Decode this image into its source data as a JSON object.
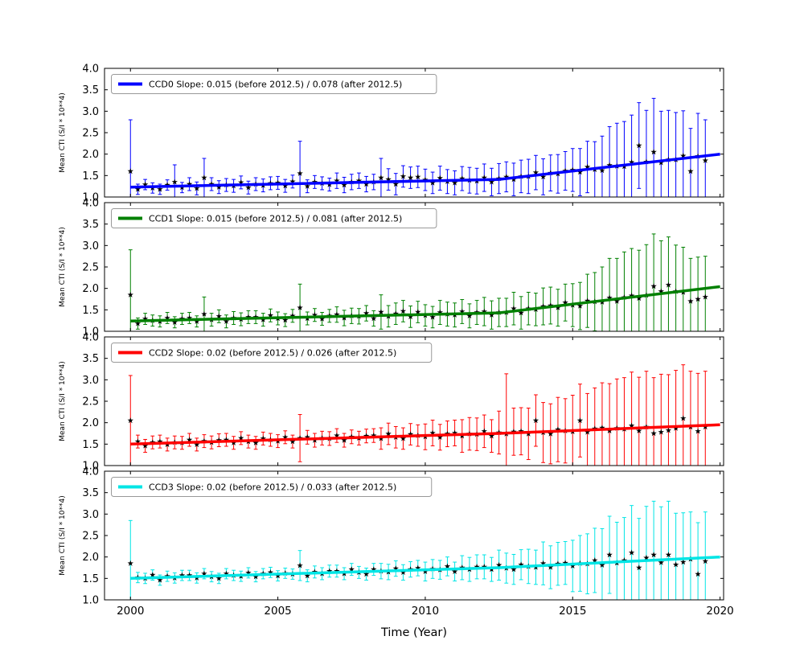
{
  "figure": {
    "background": "#ffffff",
    "xlabel": "Time (Year)",
    "ylabel": "Mean CTI (S/I * 10**4)",
    "x_ticks": [
      2000,
      2005,
      2010,
      2015,
      2020
    ],
    "x_tick_labels": [
      "2000",
      "2005",
      "2010",
      "2015",
      "2020"
    ],
    "y_ticks": [
      4.0,
      3.5,
      3.0,
      2.5,
      2.0,
      1.5,
      1.0
    ],
    "y_tick_labels": [
      "4.0",
      "3.5",
      "3.0",
      "2.5",
      "2.0",
      "1.5",
      "1.0"
    ],
    "xlim": [
      1999.12,
      2020.12
    ],
    "ylim": [
      1.0,
      4.0
    ],
    "marker": "star",
    "marker_color": "#000000",
    "frame_color": "#000000",
    "legend_border_color": "#999999"
  },
  "chart_data": [
    {
      "type": "scatter",
      "name": "CCD0",
      "legend": "CCD0 Slope: 0.015 (before 2012.5) / 0.078 (after 2012.5)",
      "color": "#0000ff",
      "slope_before": 0.015,
      "slope_after": 0.078,
      "break_year": 2012.5,
      "fit_x": [
        2000,
        2012.5,
        2020
      ],
      "fit_y": [
        1.23,
        1.41,
        2.0
      ],
      "x": [
        2000,
        2000.25,
        2000.5,
        2000.75,
        2001,
        2001.25,
        2001.5,
        2001.75,
        2002,
        2002.25,
        2002.5,
        2002.75,
        2003,
        2003.25,
        2003.5,
        2003.75,
        2004,
        2004.25,
        2004.5,
        2004.75,
        2005,
        2005.25,
        2005.5,
        2005.75,
        2006,
        2006.25,
        2006.5,
        2006.75,
        2007,
        2007.25,
        2007.5,
        2007.75,
        2008,
        2008.25,
        2008.5,
        2008.75,
        2009,
        2009.25,
        2009.5,
        2009.75,
        2010,
        2010.25,
        2010.5,
        2010.75,
        2011,
        2011.25,
        2011.5,
        2011.75,
        2012,
        2012.25,
        2012.5,
        2012.75,
        2013,
        2013.25,
        2013.5,
        2013.75,
        2014,
        2014.25,
        2014.5,
        2014.75,
        2015,
        2015.25,
        2015.5,
        2015.75,
        2016,
        2016.25,
        2016.5,
        2016.75,
        2017,
        2017.25,
        2017.5,
        2017.75,
        2018,
        2018.25,
        2018.5,
        2018.75,
        2019,
        2019.25,
        2019.5
      ],
      "y": [
        1.6,
        1.18,
        1.29,
        1.21,
        1.18,
        1.28,
        1.35,
        1.22,
        1.3,
        1.2,
        1.45,
        1.3,
        1.23,
        1.28,
        1.26,
        1.34,
        1.22,
        1.3,
        1.27,
        1.32,
        1.33,
        1.26,
        1.36,
        1.55,
        1.25,
        1.35,
        1.32,
        1.29,
        1.38,
        1.28,
        1.35,
        1.38,
        1.3,
        1.35,
        1.45,
        1.41,
        1.3,
        1.48,
        1.45,
        1.47,
        1.4,
        1.33,
        1.44,
        1.36,
        1.33,
        1.43,
        1.39,
        1.37,
        1.45,
        1.35,
        1.43,
        1.47,
        1.41,
        1.48,
        1.48,
        1.57,
        1.47,
        1.56,
        1.54,
        1.61,
        1.63,
        1.58,
        1.7,
        1.64,
        1.62,
        1.74,
        1.72,
        1.71,
        1.81,
        2.2,
        1.82,
        2.05,
        1.8,
        1.87,
        1.87,
        1.96,
        1.6,
        1.95,
        1.85
      ],
      "err": [
        1.2,
        0.12,
        0.12,
        0.12,
        0.12,
        0.12,
        0.4,
        0.12,
        0.15,
        0.15,
        0.45,
        0.15,
        0.15,
        0.15,
        0.15,
        0.15,
        0.15,
        0.15,
        0.15,
        0.15,
        0.15,
        0.15,
        0.15,
        0.75,
        0.15,
        0.15,
        0.15,
        0.15,
        0.18,
        0.18,
        0.18,
        0.18,
        0.18,
        0.18,
        0.45,
        0.25,
        0.25,
        0.25,
        0.25,
        0.25,
        0.25,
        0.25,
        0.28,
        0.28,
        0.28,
        0.28,
        0.3,
        0.3,
        0.32,
        0.32,
        0.35,
        0.35,
        0.38,
        0.38,
        0.4,
        0.4,
        0.42,
        0.42,
        0.45,
        0.45,
        0.5,
        0.55,
        0.6,
        0.65,
        0.8,
        0.9,
        1.0,
        1.05,
        1.1,
        1.0,
        1.2,
        1.25,
        1.2,
        1.15,
        1.1,
        1.05,
        1.0,
        1.0,
        0.95
      ]
    },
    {
      "type": "scatter",
      "name": "CCD1",
      "legend": "CCD1 Slope: 0.015 (before 2012.5) / 0.081 (after 2012.5)",
      "color": "#008000",
      "slope_before": 0.015,
      "slope_after": 0.081,
      "break_year": 2012.5,
      "fit_x": [
        2000,
        2012.5,
        2020
      ],
      "fit_y": [
        1.24,
        1.43,
        2.04
      ],
      "x": [
        2000,
        2000.25,
        2000.5,
        2000.75,
        2001,
        2001.25,
        2001.5,
        2001.75,
        2002,
        2002.25,
        2002.5,
        2002.75,
        2003,
        2003.25,
        2003.5,
        2003.75,
        2004,
        2004.25,
        2004.5,
        2004.75,
        2005,
        2005.25,
        2005.5,
        2005.75,
        2006,
        2006.25,
        2006.5,
        2006.75,
        2007,
        2007.25,
        2007.5,
        2007.75,
        2008,
        2008.25,
        2008.5,
        2008.75,
        2009,
        2009.25,
        2009.5,
        2009.75,
        2010,
        2010.25,
        2010.5,
        2010.75,
        2011,
        2011.25,
        2011.5,
        2011.75,
        2012,
        2012.25,
        2012.5,
        2012.75,
        2013,
        2013.25,
        2013.5,
        2013.75,
        2014,
        2014.25,
        2014.5,
        2014.75,
        2015,
        2015.25,
        2015.5,
        2015.75,
        2016,
        2016.25,
        2016.5,
        2016.75,
        2017,
        2017.25,
        2017.5,
        2017.75,
        2018,
        2018.25,
        2018.5,
        2018.75,
        2019,
        2019.25,
        2019.5
      ],
      "y": [
        1.85,
        1.18,
        1.29,
        1.25,
        1.23,
        1.31,
        1.21,
        1.29,
        1.31,
        1.23,
        1.4,
        1.27,
        1.35,
        1.23,
        1.31,
        1.28,
        1.33,
        1.33,
        1.27,
        1.37,
        1.3,
        1.26,
        1.36,
        1.55,
        1.3,
        1.38,
        1.29,
        1.36,
        1.39,
        1.31,
        1.36,
        1.35,
        1.42,
        1.3,
        1.45,
        1.35,
        1.41,
        1.47,
        1.34,
        1.45,
        1.37,
        1.33,
        1.44,
        1.4,
        1.38,
        1.46,
        1.36,
        1.44,
        1.46,
        1.38,
        1.44,
        1.44,
        1.53,
        1.43,
        1.53,
        1.51,
        1.58,
        1.6,
        1.55,
        1.67,
        1.61,
        1.59,
        1.71,
        1.69,
        1.68,
        1.78,
        1.7,
        1.79,
        1.83,
        1.77,
        1.84,
        2.05,
        1.93,
        2.08,
        1.93,
        1.91,
        1.7,
        1.75,
        1.8
      ],
      "err": [
        1.05,
        0.13,
        0.13,
        0.13,
        0.13,
        0.13,
        0.13,
        0.13,
        0.13,
        0.13,
        0.4,
        0.15,
        0.15,
        0.15,
        0.15,
        0.15,
        0.15,
        0.15,
        0.15,
        0.15,
        0.15,
        0.15,
        0.15,
        0.55,
        0.15,
        0.15,
        0.15,
        0.15,
        0.18,
        0.18,
        0.18,
        0.18,
        0.18,
        0.18,
        0.4,
        0.25,
        0.25,
        0.25,
        0.25,
        0.25,
        0.25,
        0.25,
        0.28,
        0.28,
        0.28,
        0.28,
        0.28,
        0.28,
        0.33,
        0.33,
        0.33,
        0.33,
        0.38,
        0.38,
        0.38,
        0.38,
        0.43,
        0.43,
        0.43,
        0.43,
        0.5,
        0.55,
        0.62,
        0.68,
        0.82,
        0.92,
        1.0,
        1.06,
        1.1,
        1.12,
        1.18,
        1.22,
        1.18,
        1.12,
        1.08,
        1.05,
        1.0,
        0.98,
        0.95
      ]
    },
    {
      "type": "scatter",
      "name": "CCD2",
      "legend": "CCD2 Slope: 0.02 (before 2012.5) / 0.026 (after 2012.5)",
      "color": "#ff0000",
      "slope_before": 0.02,
      "slope_after": 0.026,
      "break_year": 2012.5,
      "fit_x": [
        2000,
        2012.5,
        2020
      ],
      "fit_y": [
        1.5,
        1.75,
        1.95
      ],
      "x": [
        2000,
        2000.25,
        2000.5,
        2000.75,
        2001,
        2001.25,
        2001.5,
        2001.75,
        2002,
        2002.25,
        2002.5,
        2002.75,
        2003,
        2003.25,
        2003.5,
        2003.75,
        2004,
        2004.25,
        2004.5,
        2004.75,
        2005,
        2005.25,
        2005.5,
        2005.75,
        2006,
        2006.25,
        2006.5,
        2006.75,
        2007,
        2007.25,
        2007.5,
        2007.75,
        2008,
        2008.25,
        2008.5,
        2008.75,
        2009,
        2009.25,
        2009.5,
        2009.75,
        2010,
        2010.25,
        2010.5,
        2010.75,
        2011,
        2011.25,
        2011.5,
        2011.75,
        2012,
        2012.25,
        2012.5,
        2012.75,
        2013,
        2013.25,
        2013.5,
        2013.75,
        2014,
        2014.25,
        2014.5,
        2014.75,
        2015,
        2015.25,
        2015.5,
        2015.75,
        2016,
        2016.25,
        2016.5,
        2016.75,
        2017,
        2017.25,
        2017.5,
        2017.75,
        2018,
        2018.25,
        2018.5,
        2018.75,
        2019,
        2019.25,
        2019.5
      ],
      "y": [
        2.05,
        1.56,
        1.46,
        1.54,
        1.56,
        1.49,
        1.54,
        1.53,
        1.6,
        1.49,
        1.57,
        1.54,
        1.59,
        1.6,
        1.53,
        1.64,
        1.56,
        1.53,
        1.63,
        1.6,
        1.57,
        1.66,
        1.56,
        1.64,
        1.66,
        1.59,
        1.64,
        1.63,
        1.7,
        1.59,
        1.67,
        1.64,
        1.69,
        1.7,
        1.63,
        1.74,
        1.66,
        1.63,
        1.73,
        1.7,
        1.67,
        1.76,
        1.66,
        1.74,
        1.76,
        1.69,
        1.74,
        1.73,
        1.8,
        1.69,
        1.77,
        1.74,
        1.79,
        1.8,
        1.74,
        2.05,
        1.77,
        1.74,
        1.84,
        1.81,
        1.79,
        2.05,
        1.78,
        1.86,
        1.88,
        1.81,
        1.87,
        1.85,
        1.93,
        1.81,
        1.9,
        1.75,
        1.78,
        1.82,
        1.87,
        2.1,
        1.9,
        1.8,
        1.9
      ],
      "err": [
        1.05,
        0.15,
        0.15,
        0.15,
        0.15,
        0.15,
        0.15,
        0.15,
        0.15,
        0.15,
        0.15,
        0.15,
        0.15,
        0.15,
        0.15,
        0.15,
        0.15,
        0.15,
        0.15,
        0.15,
        0.15,
        0.15,
        0.15,
        0.55,
        0.16,
        0.16,
        0.16,
        0.16,
        0.16,
        0.16,
        0.16,
        0.16,
        0.16,
        0.16,
        0.25,
        0.25,
        0.25,
        0.25,
        0.25,
        0.25,
        0.3,
        0.3,
        0.3,
        0.3,
        0.3,
        0.38,
        0.38,
        0.38,
        0.38,
        0.38,
        0.5,
        1.4,
        0.55,
        0.55,
        0.6,
        0.6,
        0.7,
        0.7,
        0.75,
        0.75,
        0.85,
        0.85,
        0.9,
        0.95,
        1.05,
        1.1,
        1.15,
        1.2,
        1.25,
        1.25,
        1.3,
        1.3,
        1.35,
        1.3,
        1.35,
        1.25,
        1.3,
        1.35,
        1.3
      ]
    },
    {
      "type": "scatter",
      "name": "CCD3",
      "legend": "CCD3 Slope: 0.02 (before 2012.5) / 0.033 (after 2012.5)",
      "color": "#00e5e5",
      "slope_before": 0.02,
      "slope_after": 0.033,
      "break_year": 2012.5,
      "fit_x": [
        2000,
        2012.5,
        2020
      ],
      "fit_y": [
        1.5,
        1.75,
        2.0
      ],
      "x": [
        2000,
        2000.25,
        2000.5,
        2000.75,
        2001,
        2001.25,
        2001.5,
        2001.75,
        2002,
        2002.25,
        2002.5,
        2002.75,
        2003,
        2003.25,
        2003.5,
        2003.75,
        2004,
        2004.25,
        2004.5,
        2004.75,
        2005,
        2005.25,
        2005.5,
        2005.75,
        2006,
        2006.25,
        2006.5,
        2006.75,
        2007,
        2007.25,
        2007.5,
        2007.75,
        2008,
        2008.25,
        2008.5,
        2008.75,
        2009,
        2009.25,
        2009.5,
        2009.75,
        2010,
        2010.25,
        2010.5,
        2010.75,
        2011,
        2011.25,
        2011.5,
        2011.75,
        2012,
        2012.25,
        2012.5,
        2012.75,
        2013,
        2013.25,
        2013.5,
        2013.75,
        2014,
        2014.25,
        2014.5,
        2014.75,
        2015,
        2015.25,
        2015.5,
        2015.75,
        2016,
        2016.25,
        2016.5,
        2016.75,
        2017,
        2017.25,
        2017.5,
        2017.75,
        2018,
        2018.25,
        2018.5,
        2018.75,
        2019,
        2019.25,
        2019.5
      ],
      "y": [
        1.85,
        1.52,
        1.5,
        1.58,
        1.46,
        1.55,
        1.51,
        1.57,
        1.57,
        1.51,
        1.61,
        1.54,
        1.5,
        1.61,
        1.57,
        1.55,
        1.63,
        1.54,
        1.61,
        1.64,
        1.56,
        1.62,
        1.6,
        1.8,
        1.56,
        1.65,
        1.61,
        1.67,
        1.67,
        1.61,
        1.71,
        1.64,
        1.6,
        1.71,
        1.67,
        1.65,
        1.73,
        1.64,
        1.71,
        1.74,
        1.66,
        1.72,
        1.7,
        1.78,
        1.66,
        1.75,
        1.71,
        1.77,
        1.77,
        1.71,
        1.81,
        1.74,
        1.71,
        1.82,
        1.78,
        1.76,
        1.85,
        1.76,
        1.84,
        1.86,
        1.79,
        1.85,
        1.84,
        1.92,
        1.81,
        2.05,
        1.86,
        1.92,
        2.1,
        1.75,
        1.98,
        2.05,
        1.87,
        2.05,
        1.82,
        1.88,
        1.95,
        1.6,
        1.9
      ],
      "err": [
        1.0,
        0.12,
        0.12,
        0.12,
        0.12,
        0.12,
        0.12,
        0.12,
        0.12,
        0.12,
        0.12,
        0.12,
        0.12,
        0.12,
        0.12,
        0.12,
        0.12,
        0.12,
        0.12,
        0.12,
        0.12,
        0.12,
        0.12,
        0.35,
        0.14,
        0.14,
        0.14,
        0.14,
        0.14,
        0.14,
        0.14,
        0.14,
        0.14,
        0.14,
        0.18,
        0.18,
        0.18,
        0.18,
        0.18,
        0.18,
        0.22,
        0.22,
        0.22,
        0.22,
        0.22,
        0.28,
        0.28,
        0.28,
        0.28,
        0.28,
        0.35,
        0.35,
        0.35,
        0.35,
        0.4,
        0.4,
        0.5,
        0.5,
        0.5,
        0.5,
        0.6,
        0.65,
        0.7,
        0.75,
        0.85,
        0.9,
        0.95,
        1.0,
        1.1,
        1.15,
        1.2,
        1.25,
        1.3,
        1.25,
        1.2,
        1.15,
        1.1,
        1.2,
        1.15
      ]
    }
  ]
}
